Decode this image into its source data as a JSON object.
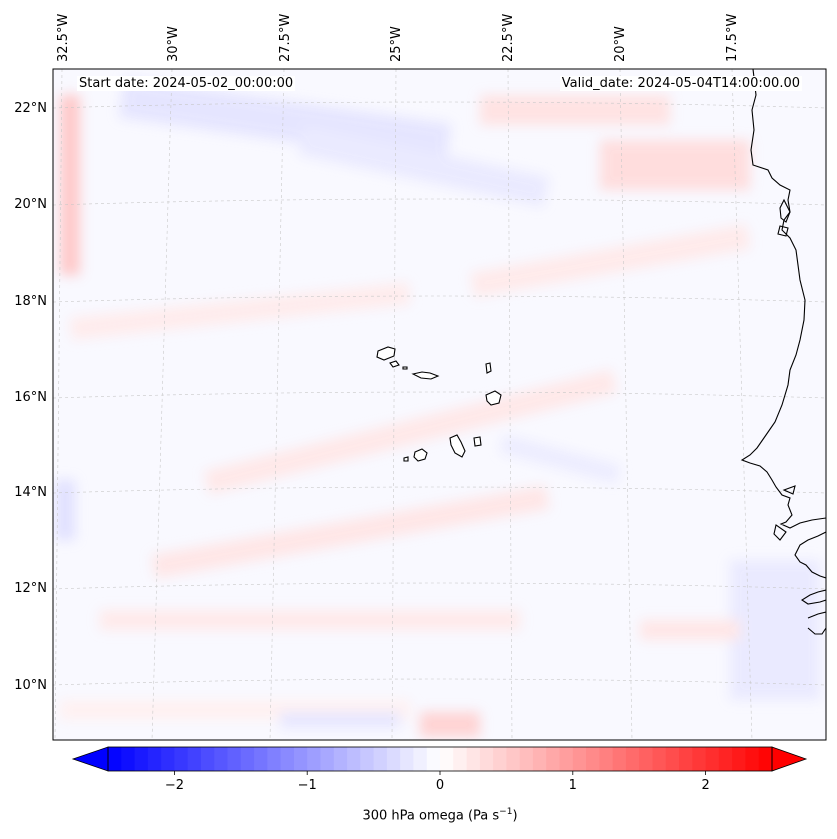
{
  "header": {
    "start_date": "Start date: 2024-05-02_00:00:00",
    "valid_date": "Valid_date: 2024-05-04T14:00:00.00"
  },
  "map": {
    "lon_ticks": [
      "32.5°W",
      "30°W",
      "27.5°W",
      "25°W",
      "22.5°W",
      "20°W",
      "17.5°W"
    ],
    "lat_ticks": [
      "22°N",
      "20°N",
      "18°N",
      "16°N",
      "14°N",
      "12°N",
      "10°N"
    ],
    "gridlines": true,
    "field": "300 hPa omega",
    "features": [
      "Cape Verde islands",
      "West African coastline"
    ]
  },
  "colorbar": {
    "ticks": [
      "−2",
      "−1",
      "0",
      "1",
      "2"
    ],
    "tick_values": [
      -2,
      -1,
      0,
      1,
      2
    ],
    "range": [
      -2.5,
      2.5
    ],
    "extend": "both",
    "colormap": "bwr",
    "low_color": "#0000ff",
    "mid_color": "#ffffff",
    "high_color": "#ff0000",
    "label_text": "300 hPa omega (Pa s",
    "label_exp": "−1",
    "label_close": ")"
  }
}
